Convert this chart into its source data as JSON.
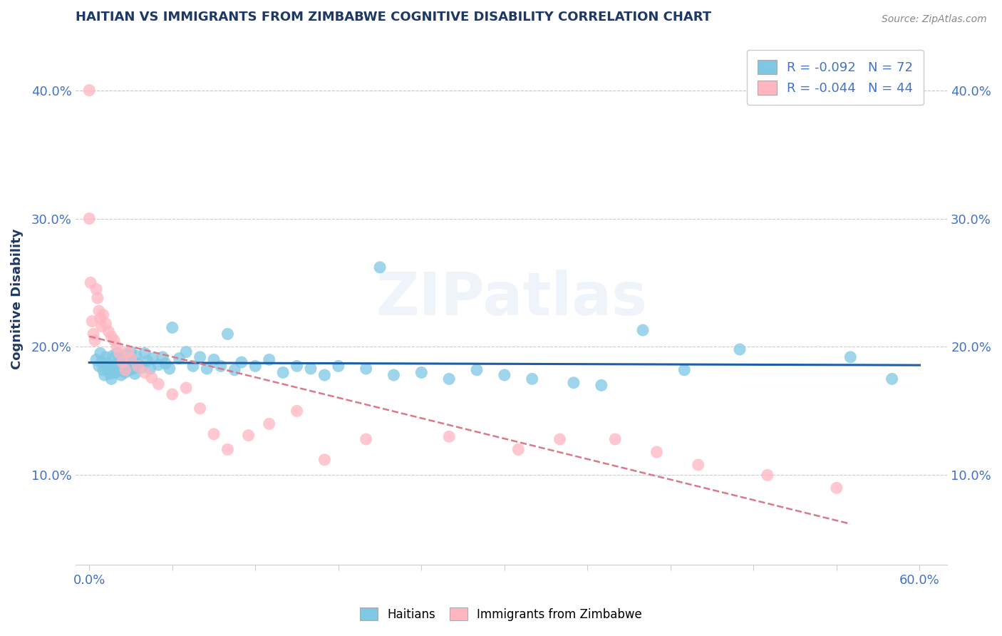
{
  "title": "HAITIAN VS IMMIGRANTS FROM ZIMBABWE COGNITIVE DISABILITY CORRELATION CHART",
  "source": "Source: ZipAtlas.com",
  "ylabel": "Cognitive Disability",
  "xlim": [
    -0.01,
    0.62
  ],
  "ylim": [
    0.03,
    0.445
  ],
  "yticks": [
    0.1,
    0.2,
    0.3,
    0.4
  ],
  "ytick_labels": [
    "10.0%",
    "20.0%",
    "30.0%",
    "40.0%"
  ],
  "xticks": [
    0.0,
    0.06,
    0.12,
    0.18,
    0.24,
    0.3,
    0.36,
    0.42,
    0.48,
    0.54,
    0.6
  ],
  "xtick_labels": [
    "0.0%",
    "",
    "",
    "",
    "",
    "",
    "",
    "",
    "",
    "",
    "60.0%"
  ],
  "haitians_R": -0.092,
  "haitians_N": 72,
  "zimbabwe_R": -0.044,
  "zimbabwe_N": 44,
  "blue_scatter_color": "#7ec8e3",
  "pink_scatter_color": "#ffb6c1",
  "blue_line_color": "#1a5fa8",
  "pink_line_color": "#d87a8a",
  "title_color": "#1f3864",
  "axis_label_color": "#1f3864",
  "tick_color": "#4472c4",
  "legend_text_color": "#4472c4",
  "watermark": "ZIPatlas",
  "haitians_x": [
    0.005,
    0.007,
    0.008,
    0.009,
    0.01,
    0.011,
    0.012,
    0.013,
    0.014,
    0.015,
    0.016,
    0.017,
    0.018,
    0.019,
    0.02,
    0.021,
    0.022,
    0.023,
    0.024,
    0.025,
    0.026,
    0.027,
    0.028,
    0.029,
    0.03,
    0.031,
    0.032,
    0.033,
    0.034,
    0.035,
    0.038,
    0.04,
    0.042,
    0.044,
    0.046,
    0.05,
    0.053,
    0.055,
    0.058,
    0.06,
    0.065,
    0.07,
    0.075,
    0.08,
    0.085,
    0.09,
    0.095,
    0.1,
    0.105,
    0.11,
    0.12,
    0.13,
    0.14,
    0.15,
    0.16,
    0.17,
    0.18,
    0.2,
    0.21,
    0.22,
    0.24,
    0.26,
    0.28,
    0.3,
    0.32,
    0.35,
    0.37,
    0.4,
    0.43,
    0.47,
    0.55,
    0.58
  ],
  "haitians_y": [
    0.19,
    0.185,
    0.195,
    0.188,
    0.182,
    0.178,
    0.192,
    0.187,
    0.183,
    0.179,
    0.175,
    0.193,
    0.186,
    0.18,
    0.195,
    0.188,
    0.182,
    0.178,
    0.191,
    0.185,
    0.18,
    0.194,
    0.187,
    0.182,
    0.196,
    0.189,
    0.183,
    0.179,
    0.193,
    0.187,
    0.184,
    0.195,
    0.189,
    0.183,
    0.191,
    0.186,
    0.192,
    0.187,
    0.183,
    0.215,
    0.191,
    0.196,
    0.185,
    0.192,
    0.183,
    0.19,
    0.185,
    0.21,
    0.182,
    0.188,
    0.185,
    0.19,
    0.18,
    0.185,
    0.183,
    0.178,
    0.185,
    0.183,
    0.262,
    0.178,
    0.18,
    0.175,
    0.182,
    0.178,
    0.175,
    0.172,
    0.17,
    0.213,
    0.182,
    0.198,
    0.192,
    0.175
  ],
  "zimbabwe_x": [
    0.0,
    0.001,
    0.002,
    0.003,
    0.004,
    0.005,
    0.006,
    0.007,
    0.008,
    0.009,
    0.01,
    0.012,
    0.014,
    0.016,
    0.018,
    0.02,
    0.022,
    0.024,
    0.026,
    0.028,
    0.03,
    0.035,
    0.04,
    0.045,
    0.05,
    0.06,
    0.07,
    0.08,
    0.09,
    0.1,
    0.115,
    0.13,
    0.15,
    0.17,
    0.2,
    0.26,
    0.31,
    0.34,
    0.38,
    0.41,
    0.44,
    0.49,
    0.54,
    0.0
  ],
  "zimbabwe_y": [
    0.4,
    0.25,
    0.22,
    0.21,
    0.205,
    0.245,
    0.238,
    0.228,
    0.222,
    0.216,
    0.225,
    0.218,
    0.212,
    0.208,
    0.205,
    0.2,
    0.195,
    0.188,
    0.182,
    0.196,
    0.191,
    0.185,
    0.18,
    0.176,
    0.171,
    0.163,
    0.168,
    0.152,
    0.132,
    0.12,
    0.131,
    0.14,
    0.15,
    0.112,
    0.128,
    0.13,
    0.12,
    0.128,
    0.128,
    0.118,
    0.108,
    0.1,
    0.09,
    0.3
  ]
}
